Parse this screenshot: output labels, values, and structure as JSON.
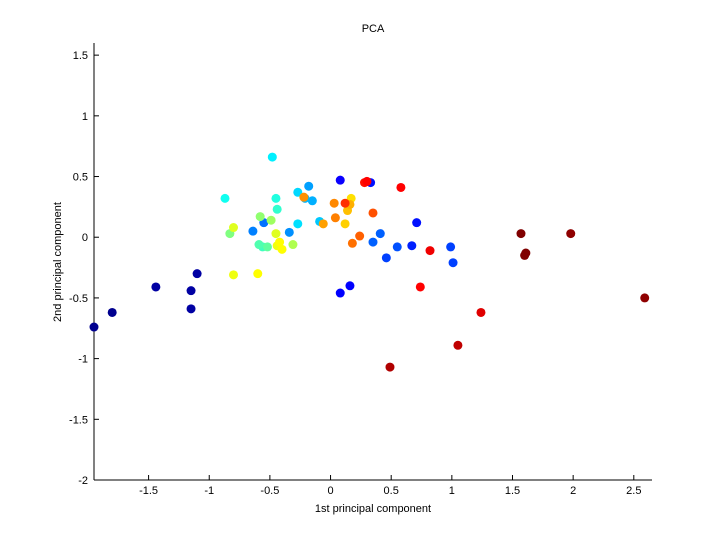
{
  "chart_data": {
    "type": "scatter",
    "title": "PCA",
    "xlabel": "1st principal component",
    "ylabel": "2nd principal component",
    "xlim": [
      -1.95,
      2.65
    ],
    "ylim": [
      -2.0,
      1.6
    ],
    "xticks": [
      -1.5,
      -1,
      -0.5,
      0,
      0.5,
      1,
      1.5,
      2,
      2.5
    ],
    "xtick_labels": [
      "-1.5",
      "-1",
      "-0.5",
      "0",
      "0.5",
      "1",
      "1.5",
      "2",
      "2.5"
    ],
    "yticks": [
      -2,
      -1.5,
      -1,
      -0.5,
      0,
      0.5,
      1,
      1.5
    ],
    "ytick_labels": [
      "-2",
      "-1.5",
      "-1",
      "-0.5",
      "0",
      "0.5",
      "1",
      "1.5"
    ],
    "grid": false,
    "legend": "none",
    "colormap": "jet",
    "points": [
      {
        "x": -1.95,
        "y": -0.74,
        "c": "#00008f"
      },
      {
        "x": -1.8,
        "y": -0.62,
        "c": "#00008f"
      },
      {
        "x": -1.44,
        "y": -0.41,
        "c": "#0000a3"
      },
      {
        "x": -1.15,
        "y": -0.44,
        "c": "#0000a3"
      },
      {
        "x": -1.15,
        "y": -0.59,
        "c": "#0000a3"
      },
      {
        "x": -1.1,
        "y": -0.3,
        "c": "#0000a3"
      },
      {
        "x": 0.08,
        "y": -0.46,
        "c": "#0000ff"
      },
      {
        "x": 0.16,
        "y": -0.4,
        "c": "#0000ff"
      },
      {
        "x": 0.08,
        "y": 0.47,
        "c": "#0a00ff"
      },
      {
        "x": 0.33,
        "y": 0.45,
        "c": "#0010ff"
      },
      {
        "x": 0.71,
        "y": 0.12,
        "c": "#0010ff"
      },
      {
        "x": 0.67,
        "y": -0.07,
        "c": "#0020ff"
      },
      {
        "x": 0.46,
        "y": -0.17,
        "c": "#0040ff"
      },
      {
        "x": 0.99,
        "y": -0.08,
        "c": "#0040ff"
      },
      {
        "x": 1.01,
        "y": -0.21,
        "c": "#0040ff"
      },
      {
        "x": 0.55,
        "y": -0.08,
        "c": "#0050ff"
      },
      {
        "x": 0.41,
        "y": 0.03,
        "c": "#0060ff"
      },
      {
        "x": 0.35,
        "y": -0.04,
        "c": "#0060ff"
      },
      {
        "x": -0.55,
        "y": 0.12,
        "c": "#0070ff"
      },
      {
        "x": -0.64,
        "y": 0.05,
        "c": "#0080ff"
      },
      {
        "x": -0.34,
        "y": 0.04,
        "c": "#0090ff"
      },
      {
        "x": -0.18,
        "y": 0.42,
        "c": "#00a0ff"
      },
      {
        "x": -0.15,
        "y": 0.3,
        "c": "#00b0ff"
      },
      {
        "x": -0.21,
        "y": 0.32,
        "c": "#00b8ff"
      },
      {
        "x": -0.09,
        "y": 0.13,
        "c": "#00c8ff"
      },
      {
        "x": -0.27,
        "y": 0.37,
        "c": "#00d8ff"
      },
      {
        "x": -0.27,
        "y": 0.11,
        "c": "#00e0ff"
      },
      {
        "x": -0.48,
        "y": 0.66,
        "c": "#00f0ff"
      },
      {
        "x": -0.87,
        "y": 0.32,
        "c": "#10fff0"
      },
      {
        "x": -0.45,
        "y": 0.32,
        "c": "#20ffe0"
      },
      {
        "x": -0.44,
        "y": 0.23,
        "c": "#30ffcf"
      },
      {
        "x": -0.56,
        "y": -0.08,
        "c": "#40ffbf"
      },
      {
        "x": -0.59,
        "y": -0.06,
        "c": "#50ffaf"
      },
      {
        "x": -0.52,
        "y": -0.08,
        "c": "#60ff9f"
      },
      {
        "x": -0.83,
        "y": 0.03,
        "c": "#80ff80"
      },
      {
        "x": -0.58,
        "y": 0.17,
        "c": "#90ff70"
      },
      {
        "x": -0.49,
        "y": 0.14,
        "c": "#9fff60"
      },
      {
        "x": -0.31,
        "y": -0.06,
        "c": "#afff50"
      },
      {
        "x": -0.45,
        "y": 0.03,
        "c": "#dfff20"
      },
      {
        "x": -0.8,
        "y": 0.08,
        "c": "#dfff20"
      },
      {
        "x": -0.44,
        "y": -0.07,
        "c": "#efff10"
      },
      {
        "x": -0.42,
        "y": -0.04,
        "c": "#ffff00"
      },
      {
        "x": -0.4,
        "y": -0.1,
        "c": "#ffff00"
      },
      {
        "x": -0.6,
        "y": -0.3,
        "c": "#ffff00"
      },
      {
        "x": -0.8,
        "y": -0.31,
        "c": "#efff10"
      },
      {
        "x": 0.17,
        "y": 0.32,
        "c": "#ffe000"
      },
      {
        "x": 0.12,
        "y": 0.11,
        "c": "#ffd000"
      },
      {
        "x": 0.14,
        "y": 0.22,
        "c": "#ffc000"
      },
      {
        "x": 0.16,
        "y": 0.27,
        "c": "#ffb000"
      },
      {
        "x": -0.06,
        "y": 0.11,
        "c": "#ffa000"
      },
      {
        "x": -0.22,
        "y": 0.33,
        "c": "#ff9000"
      },
      {
        "x": 0.03,
        "y": 0.28,
        "c": "#ff8800"
      },
      {
        "x": 0.04,
        "y": 0.16,
        "c": "#ff8000"
      },
      {
        "x": 0.18,
        "y": -0.05,
        "c": "#ff7000"
      },
      {
        "x": 0.24,
        "y": 0.01,
        "c": "#ff6000"
      },
      {
        "x": 0.35,
        "y": 0.2,
        "c": "#ff5000"
      },
      {
        "x": 0.12,
        "y": 0.28,
        "c": "#ff3000"
      },
      {
        "x": 0.28,
        "y": 0.45,
        "c": "#ff1000"
      },
      {
        "x": 0.3,
        "y": 0.46,
        "c": "#ff0000"
      },
      {
        "x": 0.58,
        "y": 0.41,
        "c": "#ff0000"
      },
      {
        "x": 0.74,
        "y": -0.41,
        "c": "#ff0000"
      },
      {
        "x": 0.82,
        "y": -0.11,
        "c": "#f00000"
      },
      {
        "x": 1.24,
        "y": -0.62,
        "c": "#e00000"
      },
      {
        "x": 1.05,
        "y": -0.89,
        "c": "#c00000"
      },
      {
        "x": 0.49,
        "y": -1.07,
        "c": "#b00000"
      },
      {
        "x": 2.59,
        "y": -0.5,
        "c": "#8f0000"
      },
      {
        "x": 1.98,
        "y": 0.03,
        "c": "#8f0000"
      },
      {
        "x": 1.57,
        "y": 0.03,
        "c": "#800000"
      },
      {
        "x": 1.61,
        "y": -0.13,
        "c": "#800000"
      },
      {
        "x": 1.6,
        "y": -0.15,
        "c": "#800000"
      }
    ]
  }
}
